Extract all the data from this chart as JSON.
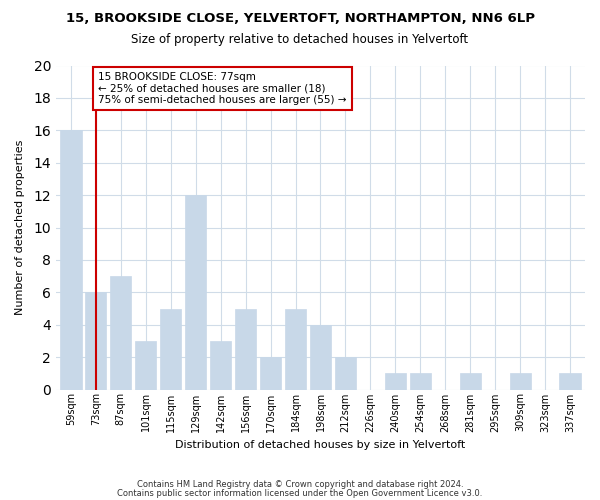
{
  "title": "15, BROOKSIDE CLOSE, YELVERTOFT, NORTHAMPTON, NN6 6LP",
  "subtitle": "Size of property relative to detached houses in Yelvertoft",
  "xlabel": "Distribution of detached houses by size in Yelvertoft",
  "ylabel": "Number of detached properties",
  "bin_labels": [
    "59sqm",
    "73sqm",
    "87sqm",
    "101sqm",
    "115sqm",
    "129sqm",
    "142sqm",
    "156sqm",
    "170sqm",
    "184sqm",
    "198sqm",
    "212sqm",
    "226sqm",
    "240sqm",
    "254sqm",
    "268sqm",
    "281sqm",
    "295sqm",
    "309sqm",
    "323sqm",
    "337sqm"
  ],
  "bar_heights": [
    16,
    6,
    7,
    3,
    5,
    12,
    3,
    5,
    2,
    5,
    4,
    2,
    0,
    1,
    1,
    0,
    1,
    0,
    1,
    0,
    1
  ],
  "bar_color": "#c8d8e8",
  "bar_edge_color": "#c8d8e8",
  "ylim": [
    0,
    20
  ],
  "yticks": [
    0,
    2,
    4,
    6,
    8,
    10,
    12,
    14,
    16,
    18,
    20
  ],
  "vline_x": 1,
  "vline_color": "#cc0000",
  "annot_line1": "15 BROOKSIDE CLOSE: 77sqm",
  "annot_line2": "← 25% of detached houses are smaller (18)",
  "annot_line3": "75% of semi-detached houses are larger (55) →",
  "footer_line1": "Contains HM Land Registry data © Crown copyright and database right 2024.",
  "footer_line2": "Contains public sector information licensed under the Open Government Licence v3.0.",
  "background_color": "#ffffff",
  "grid_color": "#d0dce8",
  "annot_edge_color": "#cc0000",
  "annot_bg_color": "#ffffff"
}
